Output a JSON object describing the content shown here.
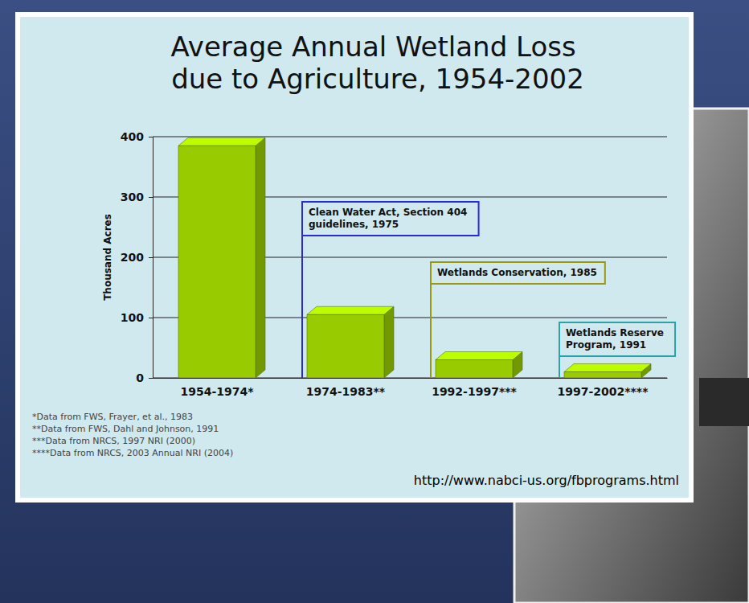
{
  "chart_data": {
    "type": "bar",
    "title": "Average Annual Wetland Loss due to Agriculture, 1954-2002",
    "y_label": "Thousand Acres",
    "categories": [
      "1954-1974*",
      "1974-1983**",
      "1992-1997***",
      "1997-2002****"
    ],
    "values": [
      385,
      105,
      30,
      10
    ],
    "color": "#99cc00",
    "ylim": [
      0,
      400
    ],
    "yticks": [
      0,
      100,
      200,
      300,
      400
    ],
    "grid": true,
    "annotations": [
      "Clean Water Act, Section 404 guidelines, 1975",
      "Wetlands Conservation, 1985",
      "Wetlands Reserve Program, 1991"
    ],
    "footnotes": [
      "*Data from FWS, Frayer, et al., 1983",
      "**Data from FWS, Dahl and Johnson, 1991",
      "***Data from NRCS, 1997 NRI (2000)",
      "****Data from NRCS, 2003 Annual NRI (2004)"
    ],
    "source": "http://www.nabci-us.org/fbprograms.html"
  }
}
